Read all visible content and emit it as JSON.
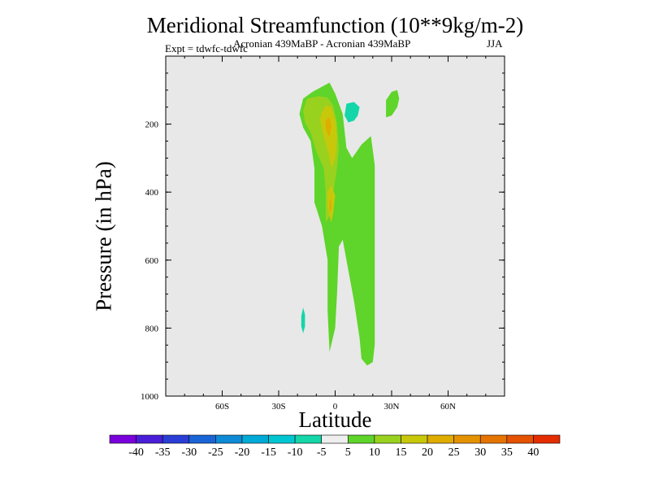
{
  "colors": {
    "plot_background": "#e8e8e8",
    "contour_green": "#5fd42a",
    "contour_lime": "#99d11f",
    "contour_yellow": "#c8c80a",
    "contour_orange": "#dfac00",
    "contour_cyan": "#14d6a8"
  },
  "chart_data": {
    "type": "heatmap",
    "title": "Meridional Streamfunction (10**9kg/m-2)",
    "subtitle": "Acronian 439MaBP - Acronian 439MaBP",
    "expt_label": "Expt = tdwfc-tdwfc",
    "season": "JJA",
    "xlabel": "Latitude",
    "ylabel": "Pressure (in hPa)",
    "xlim": [
      -90,
      90
    ],
    "ylim": [
      1000,
      0
    ],
    "x_ticks": [
      {
        "value": -60,
        "label": "60S"
      },
      {
        "value": -30,
        "label": "30S"
      },
      {
        "value": 0,
        "label": "0"
      },
      {
        "value": 30,
        "label": "30N"
      },
      {
        "value": 60,
        "label": "60N"
      }
    ],
    "y_ticks": [
      {
        "value": 200,
        "label": "200"
      },
      {
        "value": 400,
        "label": "400"
      },
      {
        "value": 600,
        "label": "600"
      },
      {
        "value": 800,
        "label": "800"
      },
      {
        "value": 1000,
        "label": "1000"
      }
    ],
    "colorbar": {
      "colors": [
        "#7a00dc",
        "#4a1ed8",
        "#2a3ed6",
        "#1a64d6",
        "#0e8ad6",
        "#00aad6",
        "#00c6d2",
        "#14d6a8",
        "#eeeeee",
        "#5fd42a",
        "#99d11f",
        "#c8c80a",
        "#dfac00",
        "#e49200",
        "#e57400",
        "#e55200",
        "#e42e00"
      ],
      "labels": [
        "-40",
        "-35",
        "-30",
        "-25",
        "-20",
        "-15",
        "-10",
        "-5",
        "5",
        "10",
        "15",
        "20",
        "25",
        "30",
        "35",
        "40"
      ]
    },
    "regions": [
      {
        "level": "5 to 10",
        "color_key": "contour_green",
        "points": [
          [
            -19,
            170
          ],
          [
            -17,
            125
          ],
          [
            -12,
            105
          ],
          [
            -7,
            90
          ],
          [
            -3,
            78
          ],
          [
            0,
            110
          ],
          [
            4,
            170
          ],
          [
            5,
            220
          ],
          [
            6,
            270
          ],
          [
            9,
            300
          ],
          [
            14,
            260
          ],
          [
            19,
            235
          ],
          [
            21,
            320
          ],
          [
            21,
            850
          ],
          [
            20,
            900
          ],
          [
            17,
            910
          ],
          [
            14,
            890
          ],
          [
            13,
            830
          ],
          [
            10,
            720
          ],
          [
            6,
            600
          ],
          [
            4,
            540
          ],
          [
            2,
            560
          ],
          [
            1,
            700
          ],
          [
            0,
            800
          ],
          [
            -3,
            870
          ],
          [
            -4,
            750
          ],
          [
            -4,
            600
          ],
          [
            -7,
            500
          ],
          [
            -11,
            430
          ],
          [
            -11,
            330
          ],
          [
            -13,
            250
          ],
          [
            -17,
            210
          ]
        ]
      },
      {
        "level": "10 to 15",
        "color_key": "contour_lime",
        "points": [
          [
            -17,
            160
          ],
          [
            -15,
            125
          ],
          [
            -9,
            118
          ],
          [
            -4,
            122
          ],
          [
            -1,
            145
          ],
          [
            1,
            200
          ],
          [
            2,
            270
          ],
          [
            1,
            330
          ],
          [
            -1,
            400
          ],
          [
            -3,
            470
          ],
          [
            -5,
            490
          ],
          [
            -5,
            400
          ],
          [
            -6,
            330
          ],
          [
            -10,
            280
          ],
          [
            -13,
            225
          ],
          [
            -16,
            195
          ]
        ]
      },
      {
        "level": "15 to 20",
        "color_key": "contour_yellow",
        "points": [
          [
            -7,
            165
          ],
          [
            -5,
            145
          ],
          [
            -2,
            150
          ],
          [
            0,
            185
          ],
          [
            1,
            240
          ],
          [
            0,
            300
          ],
          [
            -2,
            330
          ],
          [
            -3,
            300
          ],
          [
            -5,
            255
          ],
          [
            -7,
            215
          ],
          [
            -8,
            185
          ]
        ]
      },
      {
        "level": "15 to 20",
        "color_key": "contour_yellow",
        "points": [
          [
            -4,
            400
          ],
          [
            -2,
            380
          ],
          [
            0,
            410
          ],
          [
            -1,
            460
          ],
          [
            -2,
            490
          ],
          [
            -3,
            470
          ],
          [
            -4,
            440
          ]
        ]
      },
      {
        "level": "20 to 25",
        "color_key": "contour_orange",
        "points": [
          [
            -5,
            190
          ],
          [
            -3,
            180
          ],
          [
            -2,
            205
          ],
          [
            -3,
            235
          ],
          [
            -4,
            230
          ],
          [
            -5,
            210
          ]
        ]
      },
      {
        "level": "20 to 25",
        "color_key": "contour_orange",
        "points": [
          [
            -3,
            425
          ],
          [
            -2,
            420
          ],
          [
            -2,
            450
          ],
          [
            -3,
            460
          ]
        ]
      },
      {
        "level": "-10 to -5",
        "color_key": "contour_cyan",
        "points": [
          [
            6,
            140
          ],
          [
            10,
            135
          ],
          [
            13,
            150
          ],
          [
            12,
            175
          ],
          [
            10,
            190
          ],
          [
            7,
            195
          ],
          [
            5,
            175
          ]
        ]
      },
      {
        "level": "5 to 10",
        "color_key": "contour_green",
        "points": [
          [
            27,
            130
          ],
          [
            30,
            105
          ],
          [
            33,
            100
          ],
          [
            34,
            125
          ],
          [
            33,
            150
          ],
          [
            30,
            175
          ],
          [
            27,
            180
          ]
        ]
      },
      {
        "level": "-10 to -5",
        "color_key": "contour_cyan",
        "points": [
          [
            -17,
            740
          ],
          [
            -16,
            760
          ],
          [
            -16,
            795
          ],
          [
            -17,
            815
          ],
          [
            -18,
            795
          ],
          [
            -18,
            765
          ]
        ]
      }
    ]
  }
}
